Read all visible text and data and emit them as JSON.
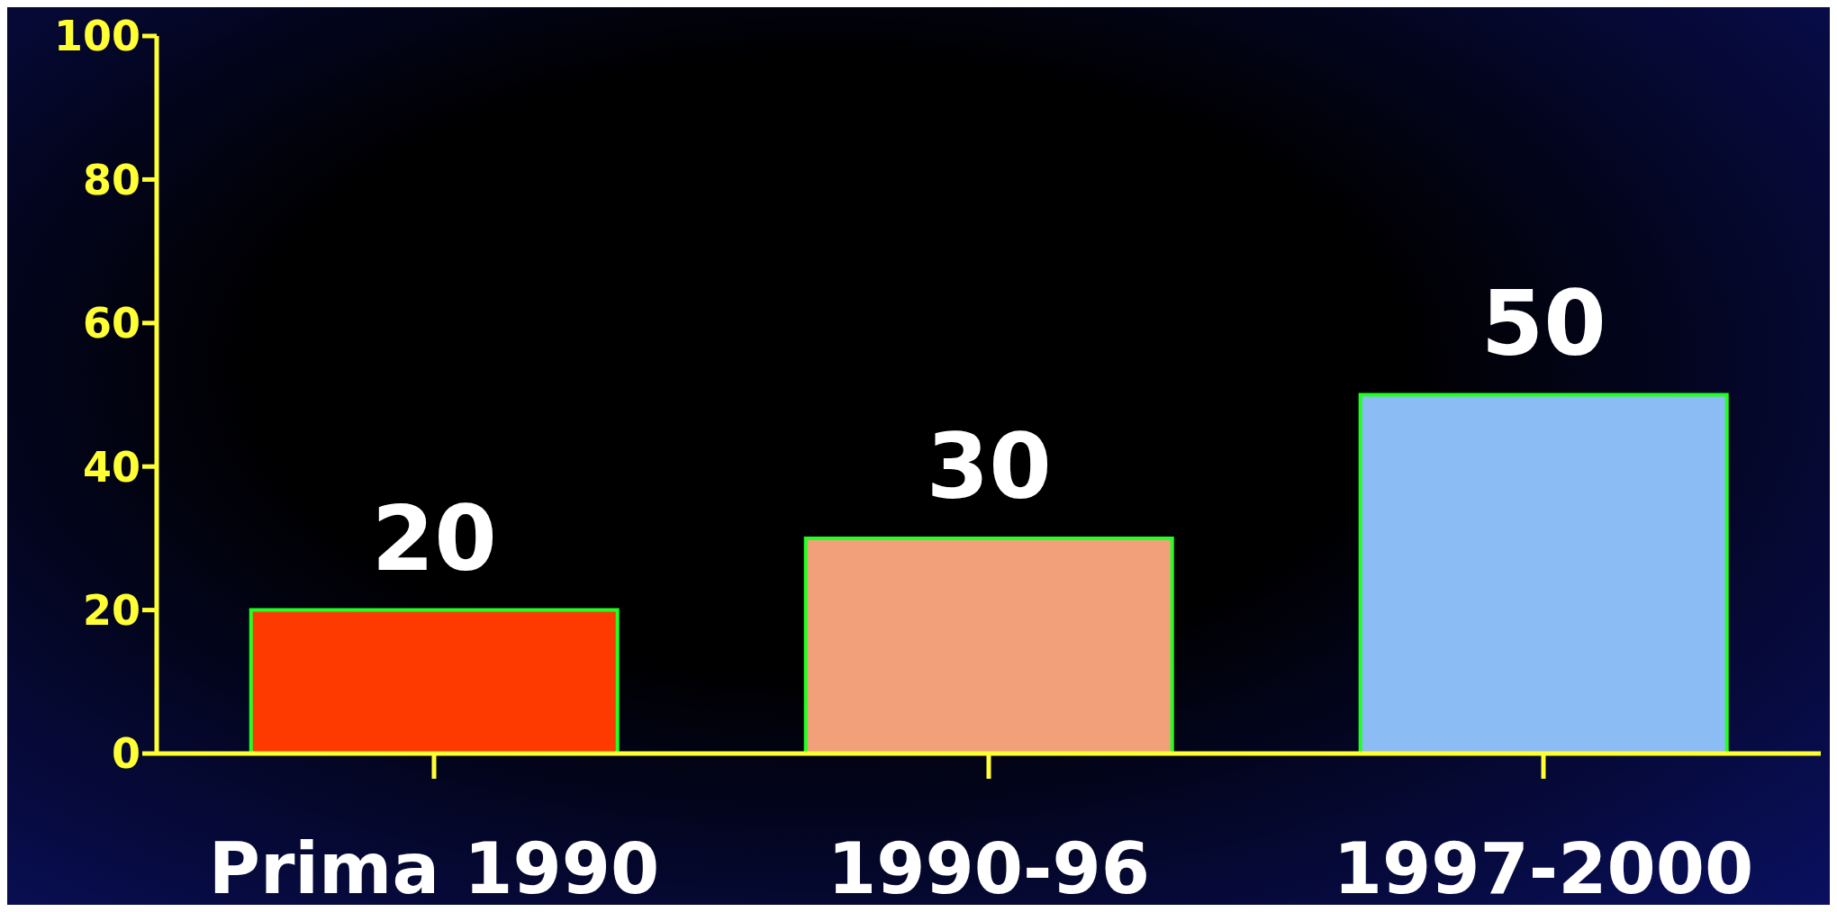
{
  "chart_data": {
    "type": "bar",
    "categories": [
      "Prima 1990",
      "1990-96",
      "1997-2000"
    ],
    "values": [
      20,
      30,
      50
    ],
    "colors": [
      "#ff3a00",
      "#f2a07a",
      "#8cbcf4"
    ],
    "ylim": [
      0,
      100
    ],
    "yticks": [
      0,
      20,
      40,
      60,
      80,
      100
    ],
    "data_labels": true
  }
}
